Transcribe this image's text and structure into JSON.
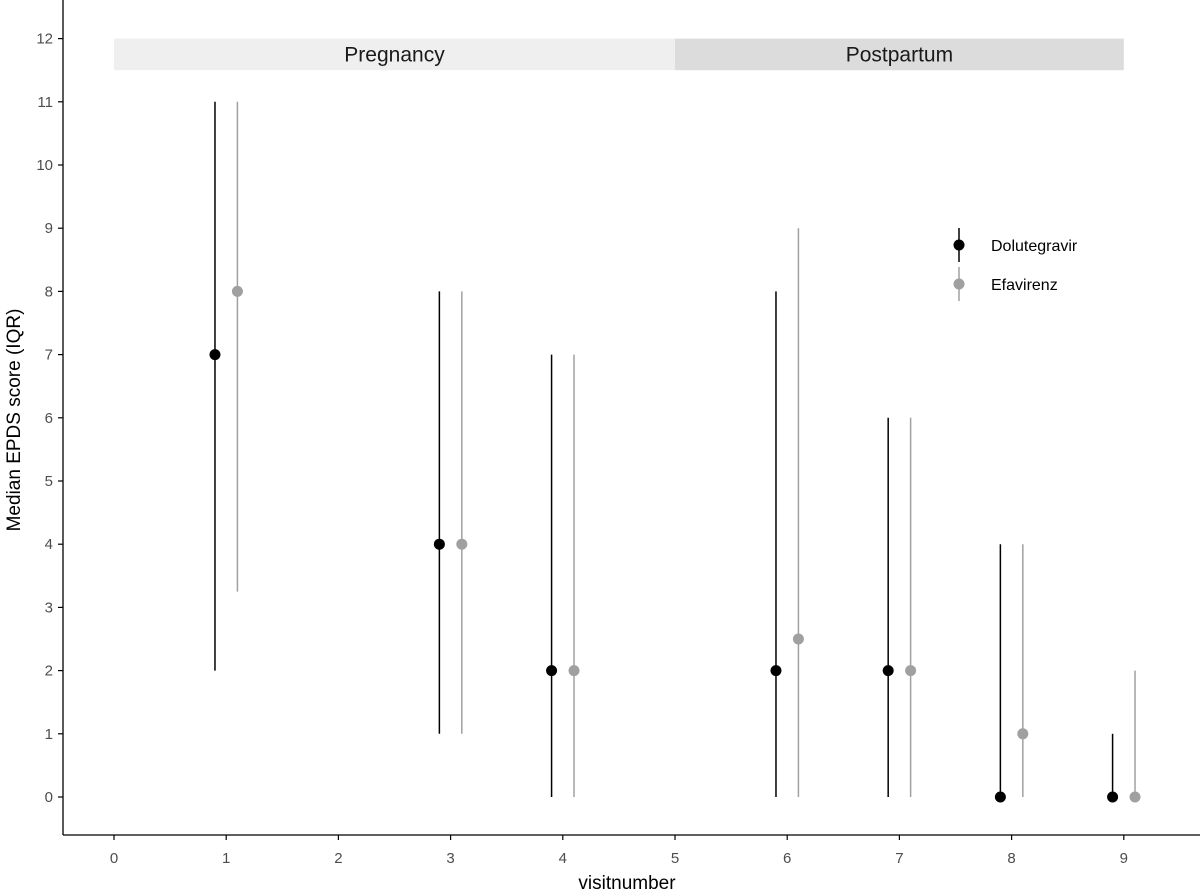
{
  "chart_data": {
    "type": "scatter",
    "title": "",
    "xlabel": "visitnumber",
    "ylabel": "Median EPDS score (IQR)",
    "xlim": [
      -0.45,
      9.6
    ],
    "ylim": [
      -0.6,
      12.6
    ],
    "x_ticks": [
      0,
      1,
      2,
      3,
      4,
      5,
      6,
      7,
      8,
      9
    ],
    "y_ticks": [
      0,
      1,
      2,
      3,
      4,
      5,
      6,
      7,
      8,
      9,
      10,
      11,
      12
    ],
    "dodge": 0.1,
    "periods": [
      {
        "label": "Pregnancy",
        "x_start": 0,
        "x_end": 5,
        "y_low": 11.5,
        "y_high": 12,
        "color": "#efefef"
      },
      {
        "label": "Postpartum",
        "x_start": 5,
        "x_end": 9,
        "y_low": 11.5,
        "y_high": 12,
        "color": "#dcdcdc"
      }
    ],
    "series": [
      {
        "name": "Dolutegravir",
        "color": "#000000",
        "points": [
          {
            "x": 1,
            "median": 7,
            "q1": 2,
            "q3": 11
          },
          {
            "x": 3,
            "median": 4,
            "q1": 1,
            "q3": 8
          },
          {
            "x": 4,
            "median": 2,
            "q1": 0,
            "q3": 7
          },
          {
            "x": 6,
            "median": 2,
            "q1": 0,
            "q3": 8
          },
          {
            "x": 7,
            "median": 2,
            "q1": 0,
            "q3": 6
          },
          {
            "x": 8,
            "median": 0,
            "q1": 0,
            "q3": 4
          },
          {
            "x": 9,
            "median": 0,
            "q1": 0,
            "q3": 1
          }
        ]
      },
      {
        "name": "Efavirenz",
        "color": "#a0a0a0",
        "points": [
          {
            "x": 1,
            "median": 8,
            "q1": 3.25,
            "q3": 11
          },
          {
            "x": 3,
            "median": 4,
            "q1": 1,
            "q3": 8
          },
          {
            "x": 4,
            "median": 2,
            "q1": 0,
            "q3": 7
          },
          {
            "x": 6,
            "median": 2.5,
            "q1": 0,
            "q3": 9
          },
          {
            "x": 7,
            "median": 2,
            "q1": 0,
            "q3": 6
          },
          {
            "x": 8,
            "median": 1,
            "q1": 0,
            "q3": 4
          },
          {
            "x": 9,
            "median": 0,
            "q1": 0,
            "q3": 2
          }
        ]
      }
    ],
    "legend": {
      "position": "top-right",
      "entries": [
        "Dolutegravir",
        "Efavirenz"
      ]
    }
  }
}
